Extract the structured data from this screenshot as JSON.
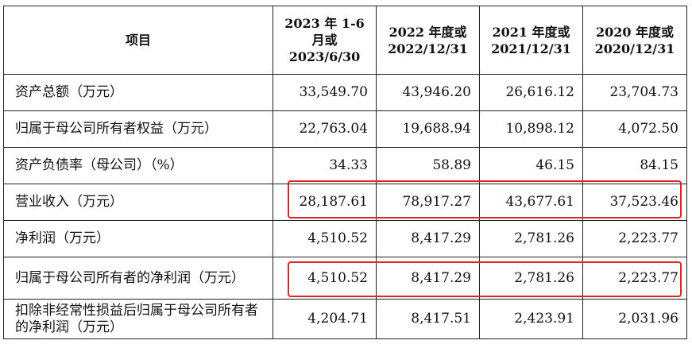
{
  "table": {
    "headers": [
      "项目",
      "2023 年 1-6 月或 2023/6/30",
      "2022 年度或 2022/12/31",
      "2021 年度或 2021/12/31",
      "2020 年度或 2020/12/31"
    ],
    "header_lines": [
      [
        "项目"
      ],
      [
        "2023 年 1-6",
        "月或",
        "2023/6/30"
      ],
      [
        "2022 年度或",
        "2022/12/31"
      ],
      [
        "2021 年度或",
        "2021/12/31"
      ],
      [
        "2020 年度或",
        "2020/12/31"
      ]
    ],
    "rows": [
      {
        "label": "资产总额（万元）",
        "values": [
          "33,549.70",
          "43,946.20",
          "26,616.12",
          "23,704.73"
        ]
      },
      {
        "label": "归属于母公司所有者权益（万元）",
        "values": [
          "22,763.04",
          "19,688.94",
          "10,898.12",
          "4,072.50"
        ]
      },
      {
        "label": "资产负债率（母公司）（%）",
        "values": [
          "34.33",
          "58.89",
          "46.15",
          "84.15"
        ]
      },
      {
        "label": "营业收入（万元）",
        "values": [
          "28,187.61",
          "78,917.27",
          "43,677.61",
          "37,523.46"
        ]
      },
      {
        "label": "净利润（万元）",
        "values": [
          "4,510.52",
          "8,417.29",
          "2,781.26",
          "2,223.77"
        ]
      },
      {
        "label": "归属于母公司所有者的净利润（万元）",
        "values": [
          "4,510.52",
          "8,417.29",
          "2,781.26",
          "2,223.77"
        ]
      },
      {
        "label": "扣除非经常性损益后归属于母公司所有者的净利润（万元）",
        "values": [
          "4,204.71",
          "8,417.51",
          "2,423.91",
          "2,031.96"
        ]
      }
    ]
  },
  "highlight_color": "#e02424",
  "highlighted_rows": [
    3,
    5
  ]
}
